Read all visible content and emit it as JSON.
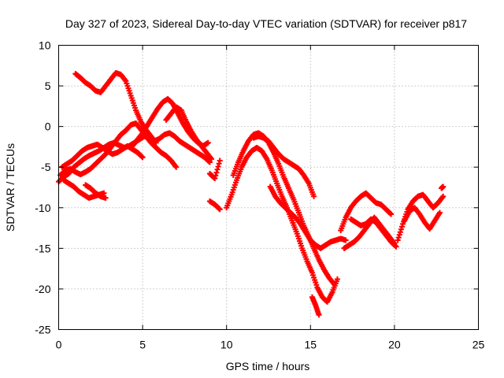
{
  "chart_data": {
    "type": "scatter",
    "title": "Day 327 of 2023, Sidereal Day-to-day VTEC variation (SDTVAR) for receiver p817",
    "xlabel": "GPS time / hours",
    "ylabel": "SDTVAR / TECUs",
    "xlim": [
      0,
      25
    ],
    "ylim": [
      -25,
      10
    ],
    "xticks": [
      "0",
      "5",
      "10",
      "15",
      "20",
      "25"
    ],
    "yticks": [
      "10",
      "5",
      "0",
      "-5",
      "-10",
      "-15",
      "-20",
      "-25"
    ],
    "grid": true,
    "marker": "plus",
    "color": "#ff0000",
    "series": [
      {
        "x": [
          0,
          0.3,
          0.6,
          0.9,
          1.2,
          1.5,
          1.8,
          2.1,
          2.4,
          2.7,
          3.0,
          3.3,
          3.6,
          3.9,
          4.2,
          4.5,
          4.8,
          5.1,
          5.4,
          5.7,
          6.0,
          6.3,
          6.6,
          6.9,
          7.2,
          7.5,
          7.8,
          8.1,
          8.4,
          8.7,
          9.0
        ],
        "y": [
          -6.8,
          -6.2,
          -5.8,
          -5.0,
          -4.5,
          -4.0,
          -3.6,
          -3.3,
          -3.0,
          -2.6,
          -2.2,
          -2.0,
          -2.3,
          -2.6,
          -2.4,
          -2.0,
          -1.6,
          -1.2,
          -1.4,
          -1.8,
          -1.5,
          -1.0,
          -0.8,
          -1.2,
          -1.8,
          -2.2,
          -2.6,
          -3.0,
          -3.4,
          -3.8,
          -4.4
        ]
      },
      {
        "x": [
          0.1,
          0.4,
          0.7,
          1.0,
          1.3,
          1.6,
          1.9,
          2.2,
          2.5,
          2.8,
          3.1,
          3.4,
          3.7,
          4.0,
          4.3,
          4.6,
          4.9,
          5.2,
          5.5,
          5.8,
          6.1,
          6.4,
          6.7,
          7.0
        ],
        "y": [
          -6.0,
          -5.4,
          -5.2,
          -5.6,
          -5.9,
          -5.6,
          -5.2,
          -4.6,
          -4.0,
          -3.4,
          -2.6,
          -1.8,
          -1.0,
          -0.5,
          0.2,
          0.4,
          -0.4,
          -1.2,
          -2.0,
          -2.6,
          -3.2,
          -3.6,
          -4.2,
          -5.0
        ]
      },
      {
        "x": [
          0.2,
          0.5,
          0.8,
          1.1,
          1.4,
          1.7,
          2.0,
          2.3,
          2.6,
          2.9,
          3.2,
          3.5,
          3.8,
          4.1,
          4.4,
          4.7,
          5.0
        ],
        "y": [
          -5.0,
          -4.6,
          -4.2,
          -3.6,
          -3.0,
          -2.6,
          -2.4,
          -2.2,
          -2.6,
          -3.0,
          -3.4,
          -3.2,
          -2.8,
          -2.4,
          -2.8,
          -3.2,
          -3.8
        ]
      },
      {
        "x": [
          0.3,
          0.6,
          0.9,
          1.2,
          1.5,
          1.8,
          2.1,
          2.4,
          2.7
        ],
        "y": [
          -6.6,
          -7.0,
          -7.4,
          -8.0,
          -8.4,
          -8.8,
          -8.6,
          -8.4,
          -8.2
        ]
      },
      {
        "x": [
          1.6,
          1.9,
          2.2,
          2.5,
          2.8
        ],
        "y": [
          -7.2,
          -7.6,
          -8.2,
          -8.6,
          -8.8
        ]
      },
      {
        "x": [
          1.0,
          1.3,
          1.6,
          1.9,
          2.2,
          2.5,
          2.8,
          3.1,
          3.4,
          3.7,
          4.0,
          4.3,
          4.6,
          4.9,
          5.2,
          5.5,
          5.8
        ],
        "y": [
          6.5,
          6.0,
          5.4,
          5.0,
          4.4,
          4.2,
          5.0,
          5.8,
          6.6,
          6.4,
          5.6,
          3.8,
          2.0,
          0.6,
          -0.4,
          -1.2,
          -2.0
        ]
      },
      {
        "x": [
          4.4,
          4.7,
          5.0,
          5.3,
          5.6,
          5.9,
          6.2,
          6.5,
          6.8,
          7.1,
          7.4,
          7.7,
          8.0,
          8.3,
          8.6,
          8.9
        ],
        "y": [
          -2.4,
          -1.6,
          -0.8,
          0.2,
          1.2,
          2.2,
          3.0,
          3.4,
          2.8,
          1.6,
          0.4,
          -0.6,
          -1.4,
          -2.0,
          -2.4,
          -2.0
        ]
      },
      {
        "x": [
          6.4,
          6.7,
          7.0,
          7.3,
          7.6,
          7.9,
          8.2,
          8.5,
          8.8,
          9.1
        ],
        "y": [
          0.8,
          1.6,
          2.4,
          2.0,
          0.6,
          -0.6,
          -1.6,
          -2.4,
          -3.2,
          -4.0
        ]
      },
      {
        "x": [
          9.0,
          9.3,
          9.6
        ],
        "y": [
          -9.2,
          -9.6,
          -10.2
        ]
      },
      {
        "x": [
          9.0,
          9.3,
          9.6
        ],
        "y": [
          -5.8,
          -6.4,
          -4.2
        ]
      },
      {
        "x": [
          10.0,
          10.3,
          10.6,
          10.9,
          11.2,
          11.5,
          11.8,
          12.1,
          12.4,
          12.7,
          13.0,
          13.3,
          13.6,
          13.9,
          14.2,
          14.5,
          14.8,
          15.1,
          15.4,
          15.7,
          16.0,
          16.3,
          16.6
        ],
        "y": [
          -10.0,
          -8.4,
          -6.6,
          -5.0,
          -3.8,
          -3.0,
          -2.6,
          -3.0,
          -4.0,
          -5.4,
          -7.0,
          -8.6,
          -10.0,
          -11.6,
          -13.2,
          -15.0,
          -16.6,
          -18.0,
          -19.8,
          -21.0,
          -21.6,
          -20.4,
          -18.8
        ]
      },
      {
        "x": [
          10.4,
          10.7,
          11.0,
          11.3,
          11.6,
          11.9,
          12.2,
          12.5,
          12.8,
          13.1,
          13.4,
          13.7,
          14.0,
          14.3,
          14.6,
          14.9,
          15.2,
          15.5,
          15.8,
          16.1,
          16.4
        ],
        "y": [
          -6.0,
          -4.4,
          -3.0,
          -1.8,
          -1.0,
          -0.8,
          -1.2,
          -2.0,
          -3.2,
          -4.6,
          -6.2,
          -7.6,
          -9.0,
          -10.6,
          -12.2,
          -13.6,
          -15.0,
          -16.4,
          -17.6,
          -18.6,
          -19.4
        ]
      },
      {
        "x": [
          11.6,
          11.9,
          12.2,
          12.5,
          12.8,
          13.1,
          13.4,
          13.7,
          14.0,
          14.3,
          14.6,
          14.9,
          15.2
        ],
        "y": [
          -1.4,
          -1.2,
          -1.4,
          -1.8,
          -2.6,
          -3.4,
          -4.0,
          -4.4,
          -4.8,
          -5.2,
          -6.0,
          -7.0,
          -8.6
        ]
      },
      {
        "x": [
          12.6,
          12.9,
          13.2,
          13.5,
          13.8,
          14.1,
          14.4,
          14.7,
          15.0,
          15.3,
          15.6,
          15.9,
          16.2,
          16.5,
          16.8,
          17.1
        ],
        "y": [
          -7.4,
          -8.6,
          -9.4,
          -10.0,
          -10.6,
          -11.2,
          -12.0,
          -13.0,
          -14.0,
          -14.6,
          -15.0,
          -14.6,
          -14.2,
          -14.0,
          -13.8,
          -14.0
        ]
      },
      {
        "x": [
          15.1,
          15.3,
          15.5
        ],
        "y": [
          -21.0,
          -22.0,
          -23.2
        ]
      },
      {
        "x": [
          16.8,
          17.1,
          17.4,
          17.7,
          18.0,
          18.3,
          18.6,
          18.9,
          19.2,
          19.5,
          19.8
        ],
        "y": [
          -12.8,
          -11.2,
          -10.0,
          -9.2,
          -8.6,
          -8.2,
          -8.8,
          -9.4,
          -9.6,
          -10.2,
          -10.8
        ]
      },
      {
        "x": [
          17.0,
          17.3,
          17.6,
          17.9,
          18.2,
          18.5,
          18.8,
          19.1,
          19.4,
          19.7,
          20.0
        ],
        "y": [
          -15.0,
          -14.6,
          -14.2,
          -13.6,
          -12.8,
          -12.0,
          -11.2,
          -12.0,
          -12.8,
          -13.6,
          -14.4
        ]
      },
      {
        "x": [
          17.4,
          17.7,
          18.0,
          18.3,
          18.6,
          18.9,
          19.2,
          19.5,
          19.8,
          20.1
        ],
        "y": [
          -11.4,
          -11.8,
          -12.2,
          -12.0,
          -11.4,
          -11.8,
          -12.6,
          -13.4,
          -14.2,
          -14.8
        ]
      },
      {
        "x": [
          20.2,
          20.5,
          20.8,
          21.1,
          21.4,
          21.7,
          22.0,
          22.3,
          22.6,
          22.9
        ],
        "y": [
          -14.0,
          -12.0,
          -10.2,
          -9.2,
          -8.6,
          -8.4,
          -9.2,
          -10.0,
          -9.4,
          -8.6
        ]
      },
      {
        "x": [
          20.6,
          20.9,
          21.2,
          21.5,
          21.8,
          22.1,
          22.4,
          22.7
        ],
        "y": [
          -11.6,
          -10.4,
          -10.0,
          -10.8,
          -11.8,
          -12.6,
          -11.6,
          -10.6
        ]
      },
      {
        "x": [
          22.8,
          22.9
        ],
        "y": [
          -7.6,
          -7.4
        ]
      }
    ]
  }
}
